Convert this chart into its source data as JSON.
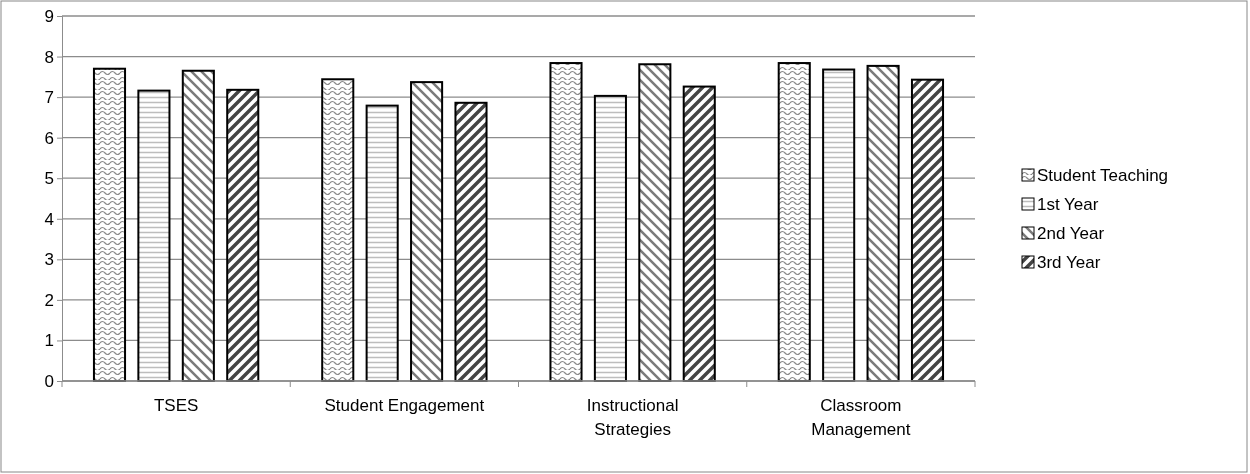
{
  "chart_data": {
    "type": "bar",
    "categories": [
      "TSES",
      "Student Engagement",
      "Instructional Strategies",
      "Classroom Management"
    ],
    "series": [
      {
        "name": "Student Teaching",
        "color": "#000000",
        "values": [
          7.7,
          7.44,
          7.84,
          7.84
        ]
      },
      {
        "name": "1st Year",
        "color": "#000000",
        "values": [
          7.16,
          6.79,
          7.03,
          7.68
        ]
      },
      {
        "name": "2nd Year",
        "color": "#000000",
        "values": [
          7.65,
          7.37,
          7.81,
          7.77
        ]
      },
      {
        "name": "3rd Year",
        "color": "#000000",
        "values": [
          7.18,
          6.86,
          7.26,
          7.43
        ]
      }
    ],
    "ylim": [
      0,
      9
    ],
    "yticks": [
      0,
      1,
      2,
      3,
      4,
      5,
      6,
      7,
      8,
      9
    ],
    "grid": "y",
    "legend": "right"
  }
}
